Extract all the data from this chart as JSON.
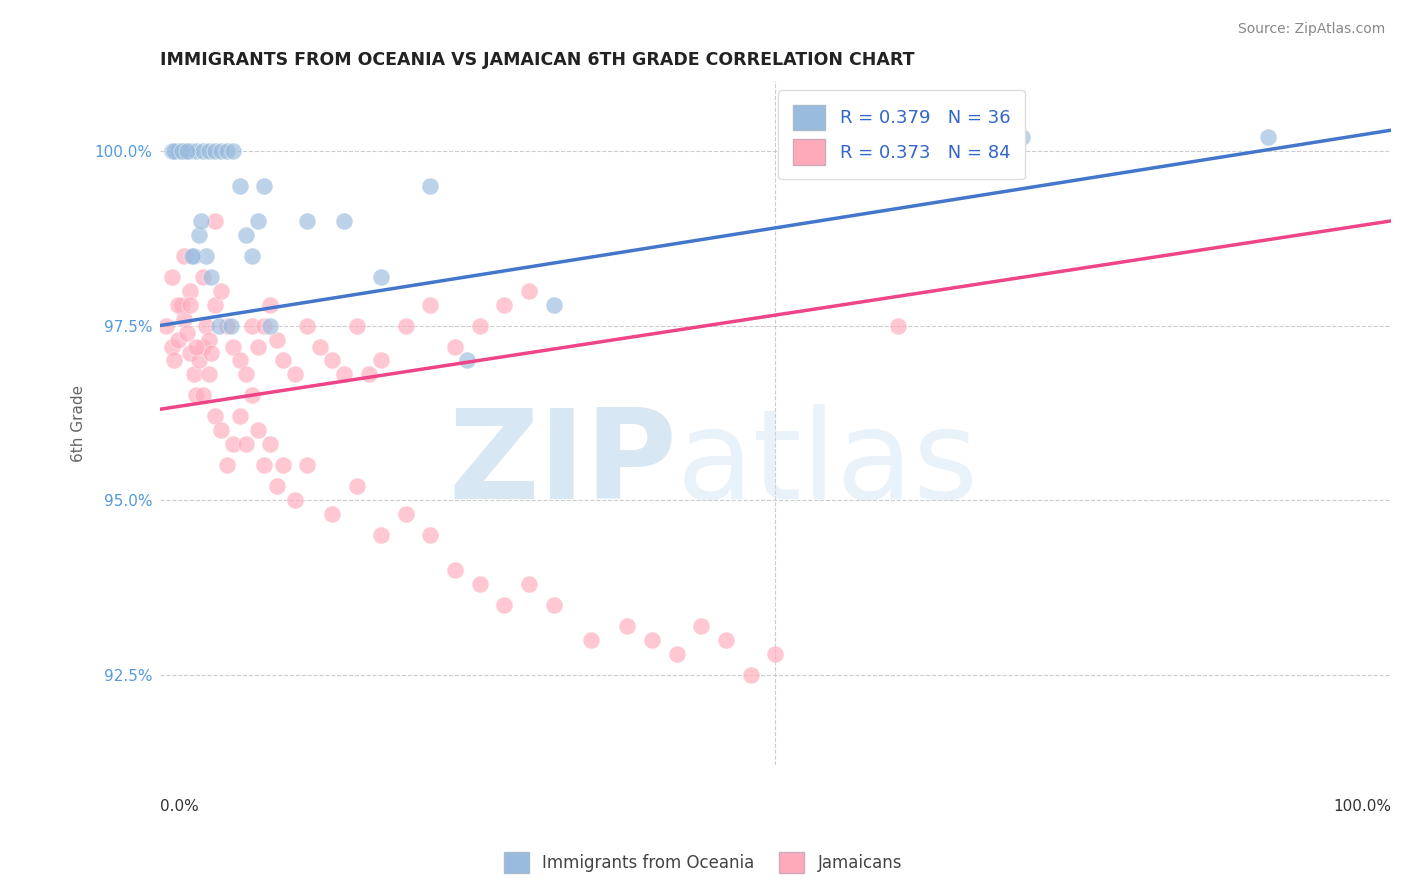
{
  "title": "IMMIGRANTS FROM OCEANIA VS JAMAICAN 6TH GRADE CORRELATION CHART",
  "source": "Source: ZipAtlas.com",
  "ylabel": "6th Grade",
  "yticks": [
    92.5,
    95.0,
    97.5,
    100.0
  ],
  "ytick_labels": [
    "92.5%",
    "95.0%",
    "97.5%",
    "100.0%"
  ],
  "legend_blue_r": "R = 0.379",
  "legend_blue_n": "N = 36",
  "legend_pink_r": "R = 0.373",
  "legend_pink_n": "N = 84",
  "blue_marker_color": "#99BBDD",
  "pink_marker_color": "#FFAABB",
  "trend_blue_color": "#4477CC",
  "trend_pink_color": "#EE4488",
  "background_color": "#FFFFFF",
  "grid_color": "#CCCCCC",
  "xlim": [
    0,
    100
  ],
  "ylim": [
    91.2,
    101.0
  ],
  "blue_x": [
    1.5,
    2.0,
    2.5,
    3.0,
    3.5,
    4.0,
    4.5,
    5.0,
    5.5,
    6.0,
    3.8,
    4.2,
    3.2,
    2.8,
    6.5,
    7.0,
    8.0,
    8.5,
    15.0,
    18.0,
    22.0,
    25.0,
    32.0,
    70.0,
    90.0,
    1.0,
    1.2,
    1.8,
    2.2,
    2.6,
    3.4,
    4.8,
    5.8,
    7.5,
    9.0,
    12.0
  ],
  "blue_y": [
    100.0,
    100.0,
    100.0,
    100.0,
    100.0,
    100.0,
    100.0,
    100.0,
    100.0,
    100.0,
    98.5,
    98.2,
    98.8,
    98.5,
    99.5,
    98.8,
    99.0,
    99.5,
    99.0,
    98.2,
    99.5,
    97.0,
    97.8,
    100.2,
    100.2,
    100.0,
    100.0,
    100.0,
    100.0,
    98.5,
    99.0,
    97.5,
    97.5,
    98.5,
    97.5,
    99.0
  ],
  "pink_x": [
    0.5,
    1.0,
    1.2,
    1.5,
    1.8,
    2.0,
    2.2,
    2.5,
    2.8,
    3.0,
    3.2,
    3.5,
    3.8,
    4.0,
    4.2,
    4.5,
    5.0,
    5.5,
    6.0,
    6.5,
    7.0,
    7.5,
    8.0,
    8.5,
    9.0,
    9.5,
    10.0,
    11.0,
    12.0,
    13.0,
    14.0,
    15.0,
    16.0,
    17.0,
    18.0,
    20.0,
    22.0,
    24.0,
    26.0,
    28.0,
    30.0,
    1.0,
    1.5,
    2.0,
    2.5,
    3.0,
    3.5,
    4.0,
    4.5,
    5.0,
    5.5,
    6.0,
    6.5,
    7.0,
    7.5,
    8.0,
    8.5,
    9.0,
    9.5,
    10.0,
    11.0,
    12.0,
    14.0,
    16.0,
    18.0,
    20.0,
    22.0,
    24.0,
    26.0,
    28.0,
    30.0,
    32.0,
    35.0,
    38.0,
    40.0,
    42.0,
    44.0,
    46.0,
    48.0,
    50.0,
    2.5,
    3.5,
    4.5,
    60.0
  ],
  "pink_y": [
    97.5,
    97.2,
    97.0,
    97.3,
    97.8,
    97.6,
    97.4,
    97.1,
    96.8,
    96.5,
    97.0,
    97.2,
    97.5,
    97.3,
    97.1,
    97.8,
    98.0,
    97.5,
    97.2,
    97.0,
    96.8,
    97.5,
    97.2,
    97.5,
    97.8,
    97.3,
    97.0,
    96.8,
    97.5,
    97.2,
    97.0,
    96.8,
    97.5,
    96.8,
    97.0,
    97.5,
    97.8,
    97.2,
    97.5,
    97.8,
    98.0,
    98.2,
    97.8,
    98.5,
    98.0,
    97.2,
    96.5,
    96.8,
    96.2,
    96.0,
    95.5,
    95.8,
    96.2,
    95.8,
    96.5,
    96.0,
    95.5,
    95.8,
    95.2,
    95.5,
    95.0,
    95.5,
    94.8,
    95.2,
    94.5,
    94.8,
    94.5,
    94.0,
    93.8,
    93.5,
    93.8,
    93.5,
    93.0,
    93.2,
    93.0,
    92.8,
    93.2,
    93.0,
    92.5,
    92.8,
    97.8,
    98.2,
    99.0,
    97.5
  ],
  "watermark_zip_color": "#C0D8F0",
  "watermark_atlas_color": "#C0D8F0"
}
